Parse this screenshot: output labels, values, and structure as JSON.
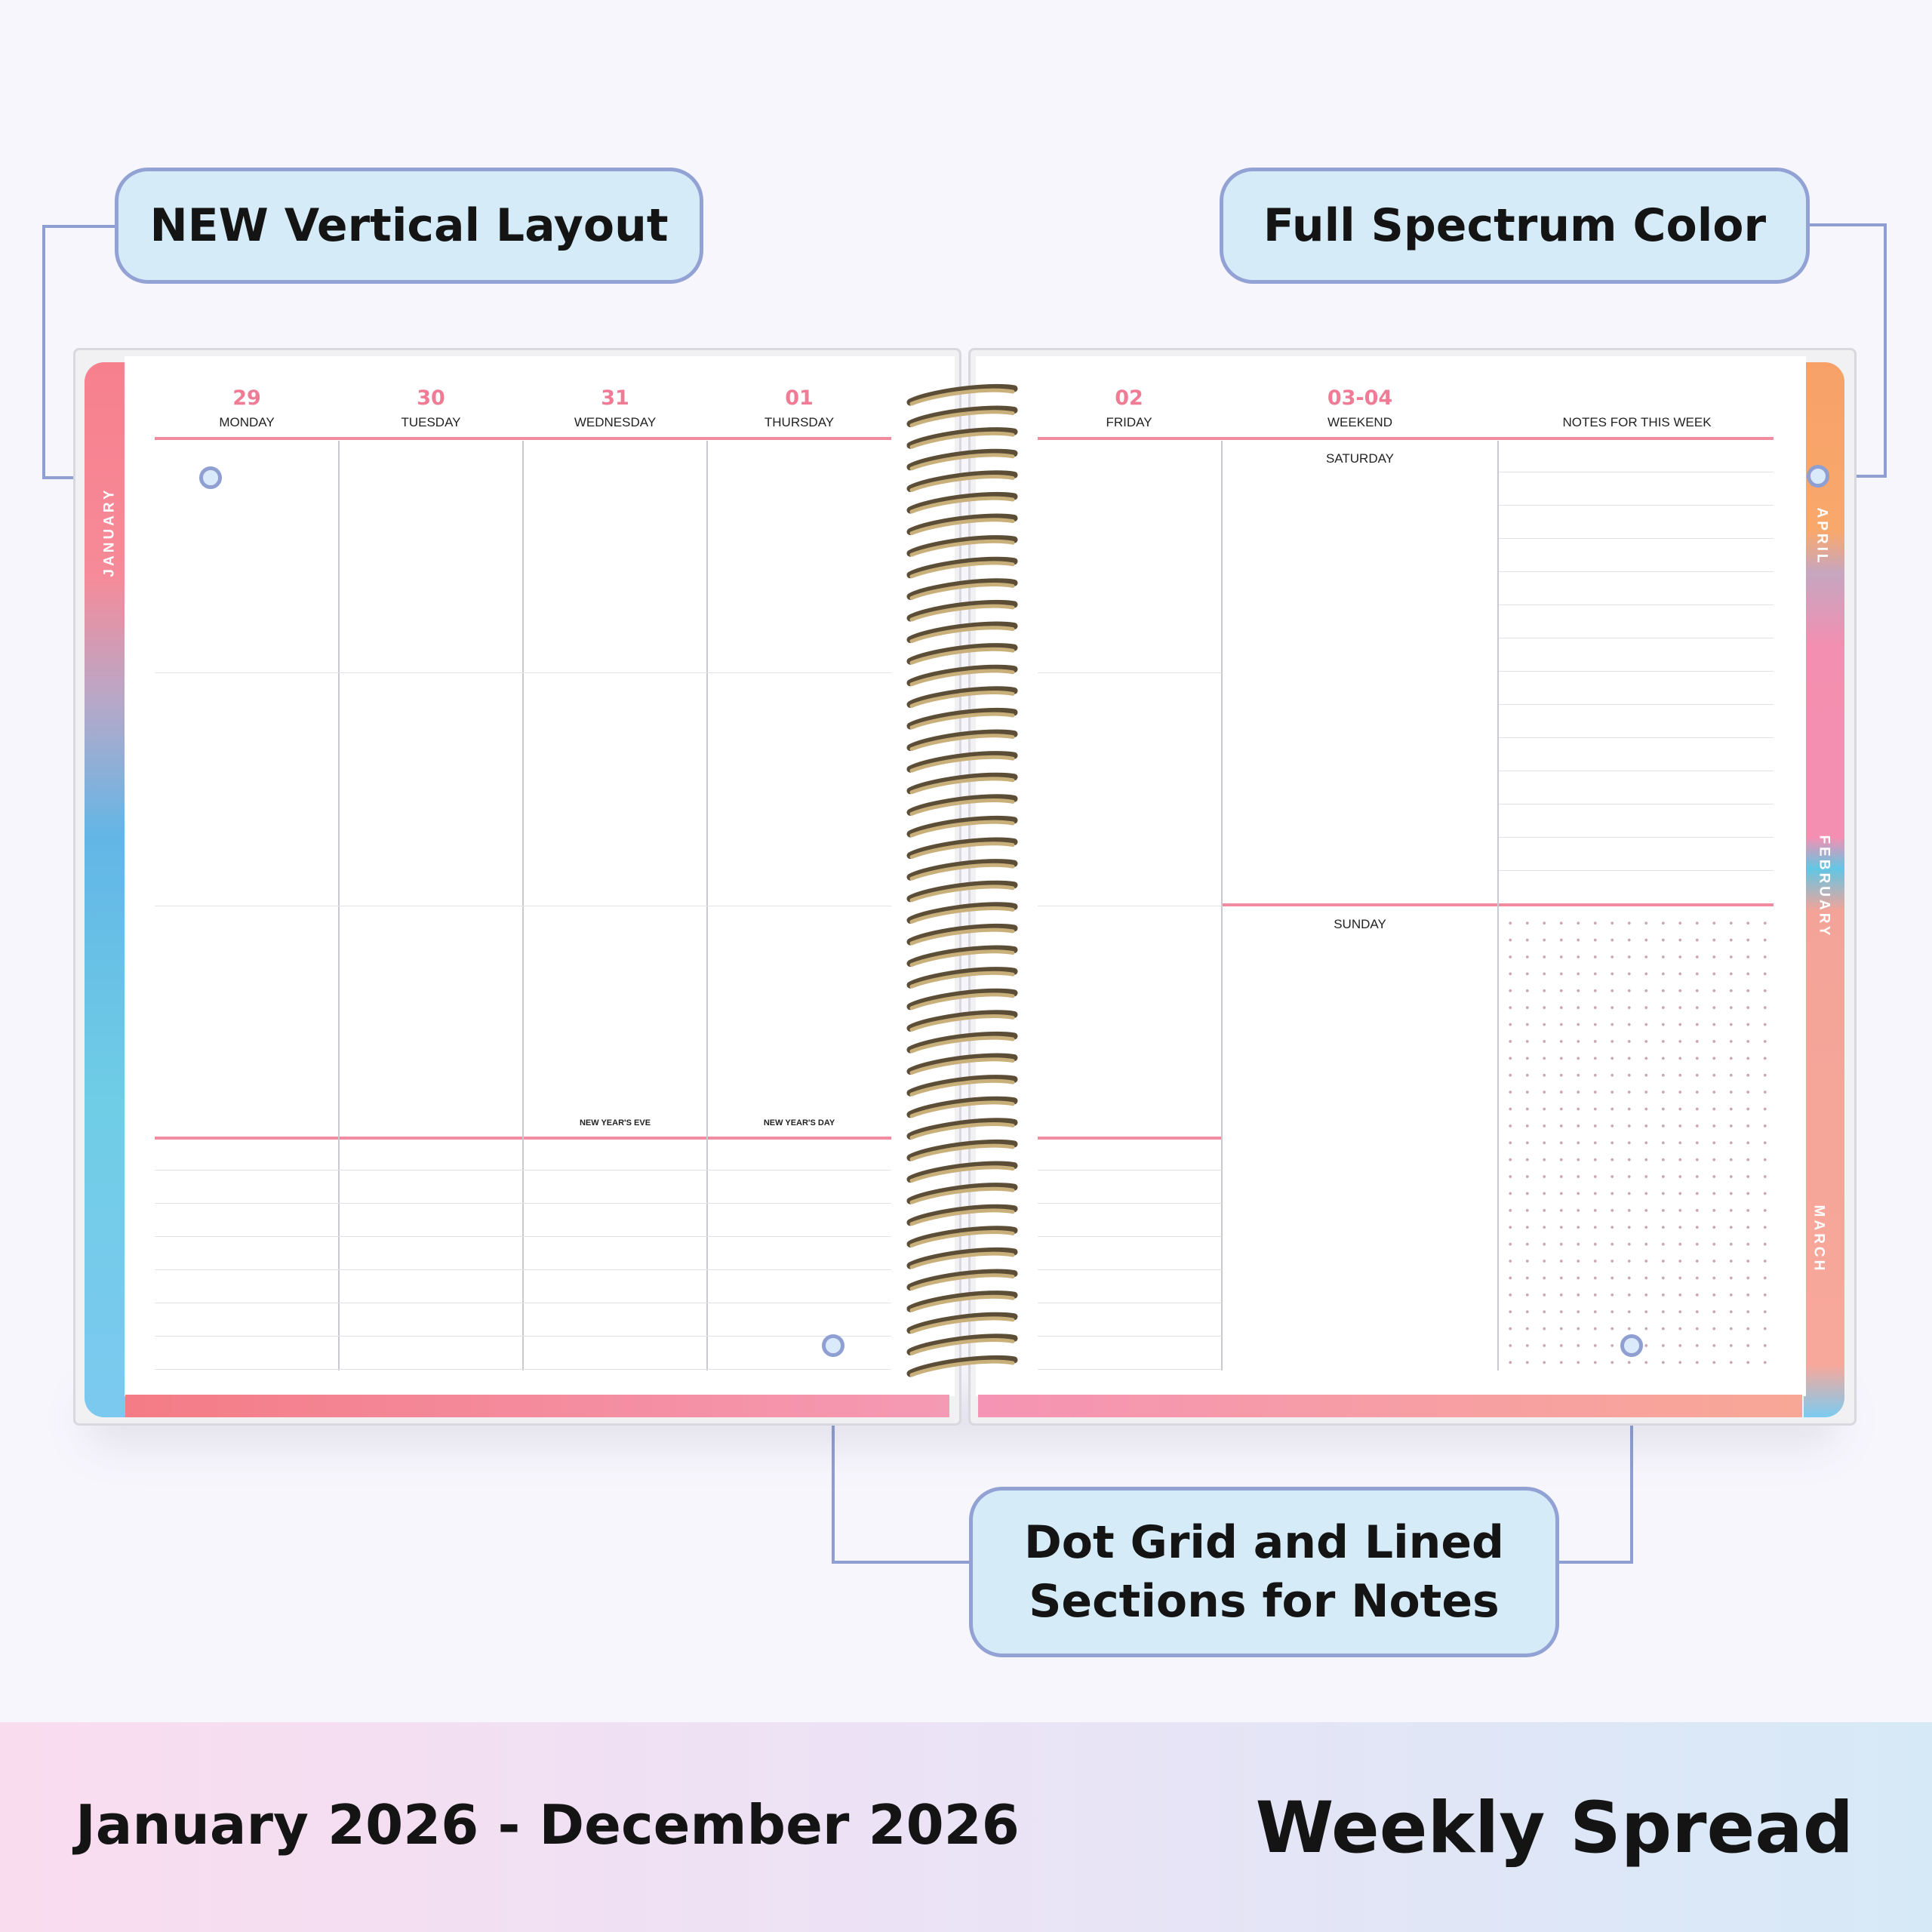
{
  "callouts": {
    "vertical_layout": "NEW Vertical Layout",
    "full_color": "Full Spectrum Color",
    "notes_line1": "Dot Grid and Lined",
    "notes_line2": "Sections for Notes"
  },
  "left_page": {
    "tab": "JANUARY",
    "days": [
      {
        "num": "29",
        "name": "MONDAY",
        "holiday": ""
      },
      {
        "num": "30",
        "name": "TUESDAY",
        "holiday": ""
      },
      {
        "num": "31",
        "name": "WEDNESDAY",
        "holiday": "NEW YEAR'S EVE"
      },
      {
        "num": "01",
        "name": "THURSDAY",
        "holiday": "NEW YEAR'S DAY"
      }
    ]
  },
  "right_page": {
    "tabs": [
      "APRIL",
      "FEBRUARY",
      "MARCH"
    ],
    "friday": {
      "num": "02",
      "name": "FRIDAY"
    },
    "weekend": {
      "num": "03-04",
      "name": "WEEKEND",
      "saturday": "SATURDAY",
      "sunday": "SUNDAY"
    },
    "notes_header": "NOTES FOR THIS WEEK"
  },
  "footer": {
    "date_range": "January 2026 - December 2026",
    "title": "Weekly Spread"
  },
  "colors": {
    "accent_pink": "#f07b95",
    "callout_bg": "#d6ebf8",
    "callout_border": "#93a2d4"
  }
}
